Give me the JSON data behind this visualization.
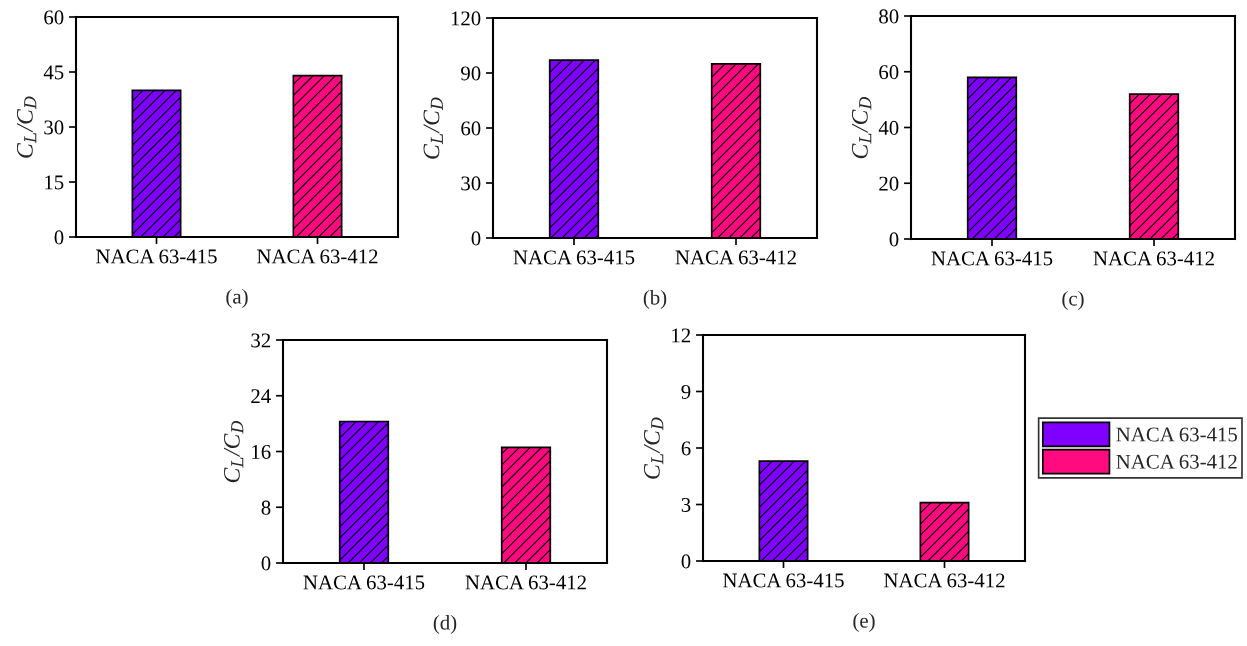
{
  "chart_data": [
    {
      "type": "bar",
      "title": "(a)",
      "ylabel": "C$_{L}$/C$_{D}$",
      "categories": [
        "NACA 63-415",
        "NACA 63-412"
      ],
      "values": [
        40,
        44
      ],
      "colors": [
        "#7f00ff",
        "#ff0a7f"
      ],
      "ylim": [
        0,
        60
      ],
      "yticks": [
        0,
        15,
        30,
        45,
        60
      ]
    },
    {
      "type": "bar",
      "title": "(b)",
      "ylabel": "C$_{L}$/C$_{D}$",
      "categories": [
        "NACA 63-415",
        "NACA 63-412"
      ],
      "values": [
        97,
        95
      ],
      "colors": [
        "#7f00ff",
        "#ff0a7f"
      ],
      "ylim": [
        0,
        120
      ],
      "yticks": [
        0,
        30,
        60,
        90,
        120
      ]
    },
    {
      "type": "bar",
      "title": "(c)",
      "ylabel": "C$_{L}$/C$_{D}$",
      "categories": [
        "NACA 63-415",
        "NACA 63-412"
      ],
      "values": [
        58,
        52
      ],
      "colors": [
        "#7f00ff",
        "#ff0a7f"
      ],
      "ylim": [
        0,
        80
      ],
      "yticks": [
        0,
        20,
        40,
        60,
        80
      ]
    },
    {
      "type": "bar",
      "title": "(d)",
      "ylabel": "C$_{L}$/C$_{D}$",
      "categories": [
        "NACA 63-415",
        "NACA 63-412"
      ],
      "values": [
        20.3,
        16.6
      ],
      "colors": [
        "#7f00ff",
        "#ff0a7f"
      ],
      "ylim": [
        0,
        32
      ],
      "yticks": [
        0,
        8,
        16,
        24,
        32
      ]
    },
    {
      "type": "bar",
      "title": "(e)",
      "ylabel": "C$_{L}$/C$_{D}$",
      "categories": [
        "NACA 63-415",
        "NACA 63-412"
      ],
      "ylim": [
        0,
        12
      ],
      "yticks": [
        0,
        3,
        6,
        9,
        12
      ],
      "legend": "right",
      "series": [
        {
          "name": "NACA 63-415",
          "color": "#7f00ff",
          "values": [
            5.3,
            null
          ]
        },
        {
          "name": "NACA 63-412",
          "color": "#ff0a7f",
          "values": [
            null,
            3.1
          ]
        }
      ]
    }
  ]
}
